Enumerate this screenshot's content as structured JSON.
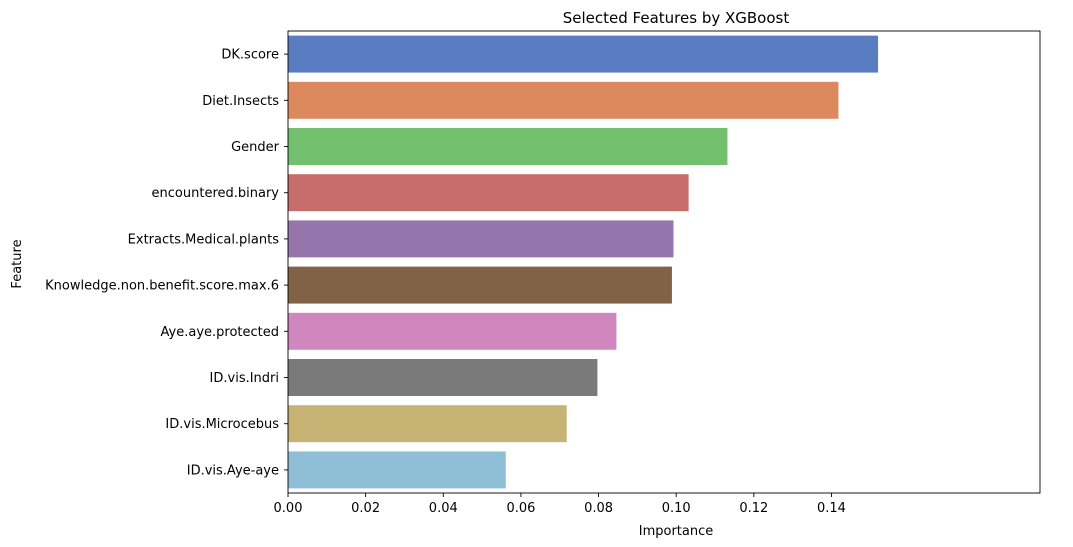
{
  "chart_data": {
    "type": "bar",
    "orientation": "horizontal",
    "title": "Selected Features by XGBoost",
    "xlabel": "Importance",
    "ylabel": "Feature",
    "xlim": [
      0,
      0.16
    ],
    "xticks": [
      "0.00",
      "0.02",
      "0.04",
      "0.06",
      "0.08",
      "0.10",
      "0.12",
      "0.14"
    ],
    "xtick_values": [
      0,
      0.02,
      0.04,
      0.06,
      0.08,
      0.1,
      0.12,
      0.14
    ],
    "grid": false,
    "categories": [
      "DK.score",
      "Diet.Insects",
      "Gender",
      "encountered.binary",
      "Extracts.Medical.plants",
      "Knowledge.non.benefit.score.max.6",
      "Aye.aye.protected",
      "ID.vis.Indri",
      "ID.vis.Microcebus",
      "ID.vis.Aye-aye"
    ],
    "values": [
      0.152,
      0.1418,
      0.1132,
      0.1032,
      0.0993,
      0.0989,
      0.0846,
      0.0797,
      0.0718,
      0.0561
    ],
    "colors": [
      "#5a7dc1",
      "#dc8a5d",
      "#72c06e",
      "#c66d6b",
      "#9575ab",
      "#826246",
      "#d087be",
      "#7a7a7a",
      "#c6b273",
      "#8ebfd6"
    ]
  }
}
